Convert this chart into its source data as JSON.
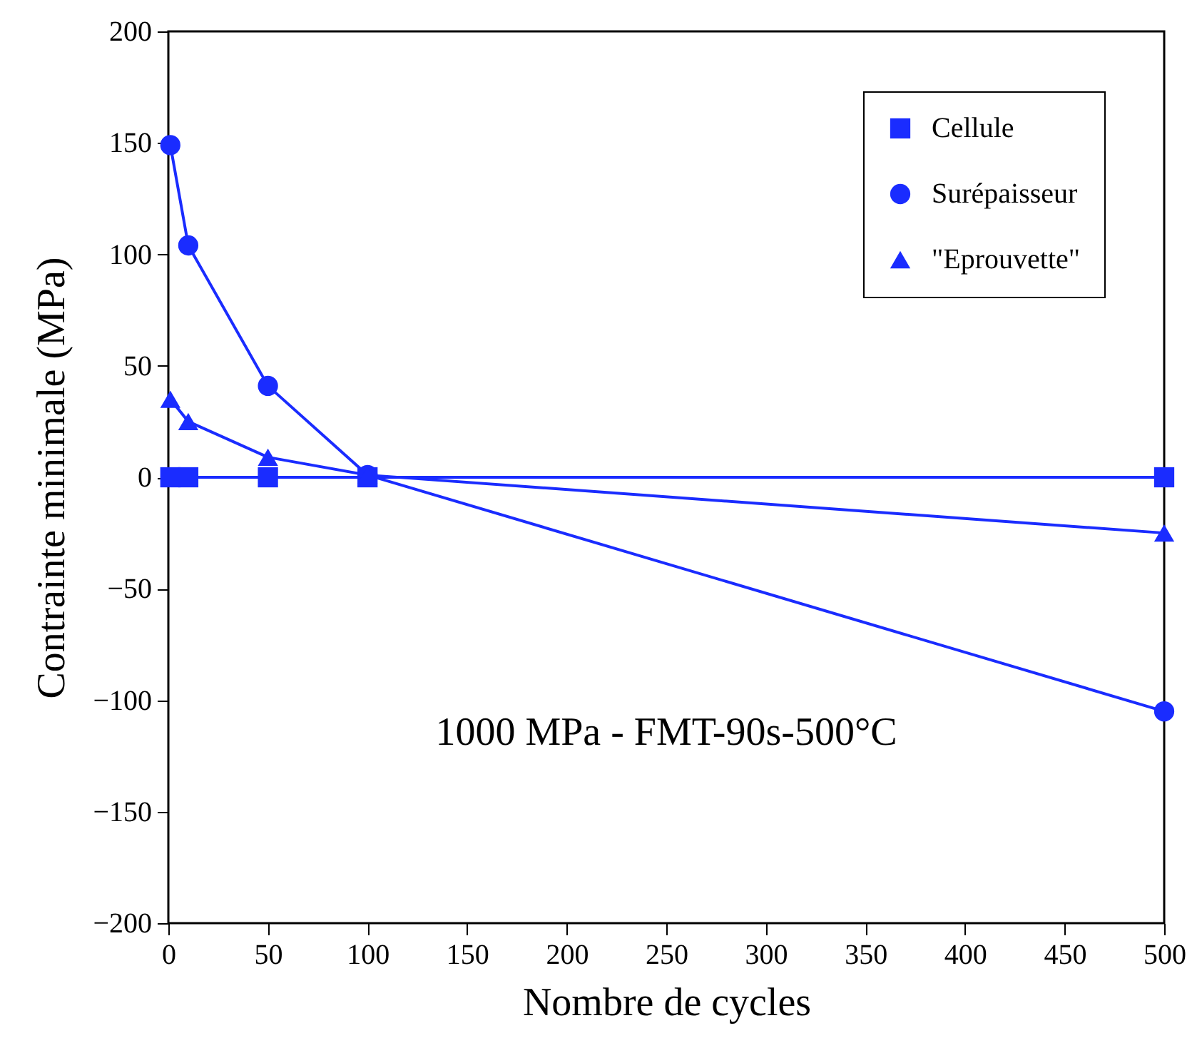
{
  "chart_data": {
    "type": "line",
    "xlabel": "Nombre de cycles",
    "ylabel": "Contrainte minimale (MPa)",
    "x": [
      1,
      10,
      50,
      100,
      500
    ],
    "series": [
      {
        "name": "Cellule",
        "color": "#1a2cff",
        "marker": "square",
        "values": [
          0,
          0,
          0,
          0,
          0
        ]
      },
      {
        "name": "Surépaisseur",
        "color": "#1a2cff",
        "marker": "circle",
        "values": [
          149,
          104,
          41,
          1,
          -105
        ]
      },
      {
        "name": "\"Eprouvette\"",
        "color": "#1a2cff",
        "marker": "triangle",
        "values": [
          35,
          25,
          9,
          1,
          -25
        ]
      }
    ],
    "xlim": [
      0,
      500
    ],
    "xticks": [
      0,
      50,
      100,
      150,
      200,
      250,
      300,
      350,
      400,
      450,
      500
    ],
    "ylim": [
      -200,
      200
    ],
    "yticks": [
      -200,
      -150,
      -100,
      -50,
      0,
      50,
      100,
      150,
      200
    ],
    "grid": false,
    "legend": "top right",
    "line_style": "solid",
    "annotations": [
      "1000 MPa - FMT-90s-500°C"
    ]
  }
}
